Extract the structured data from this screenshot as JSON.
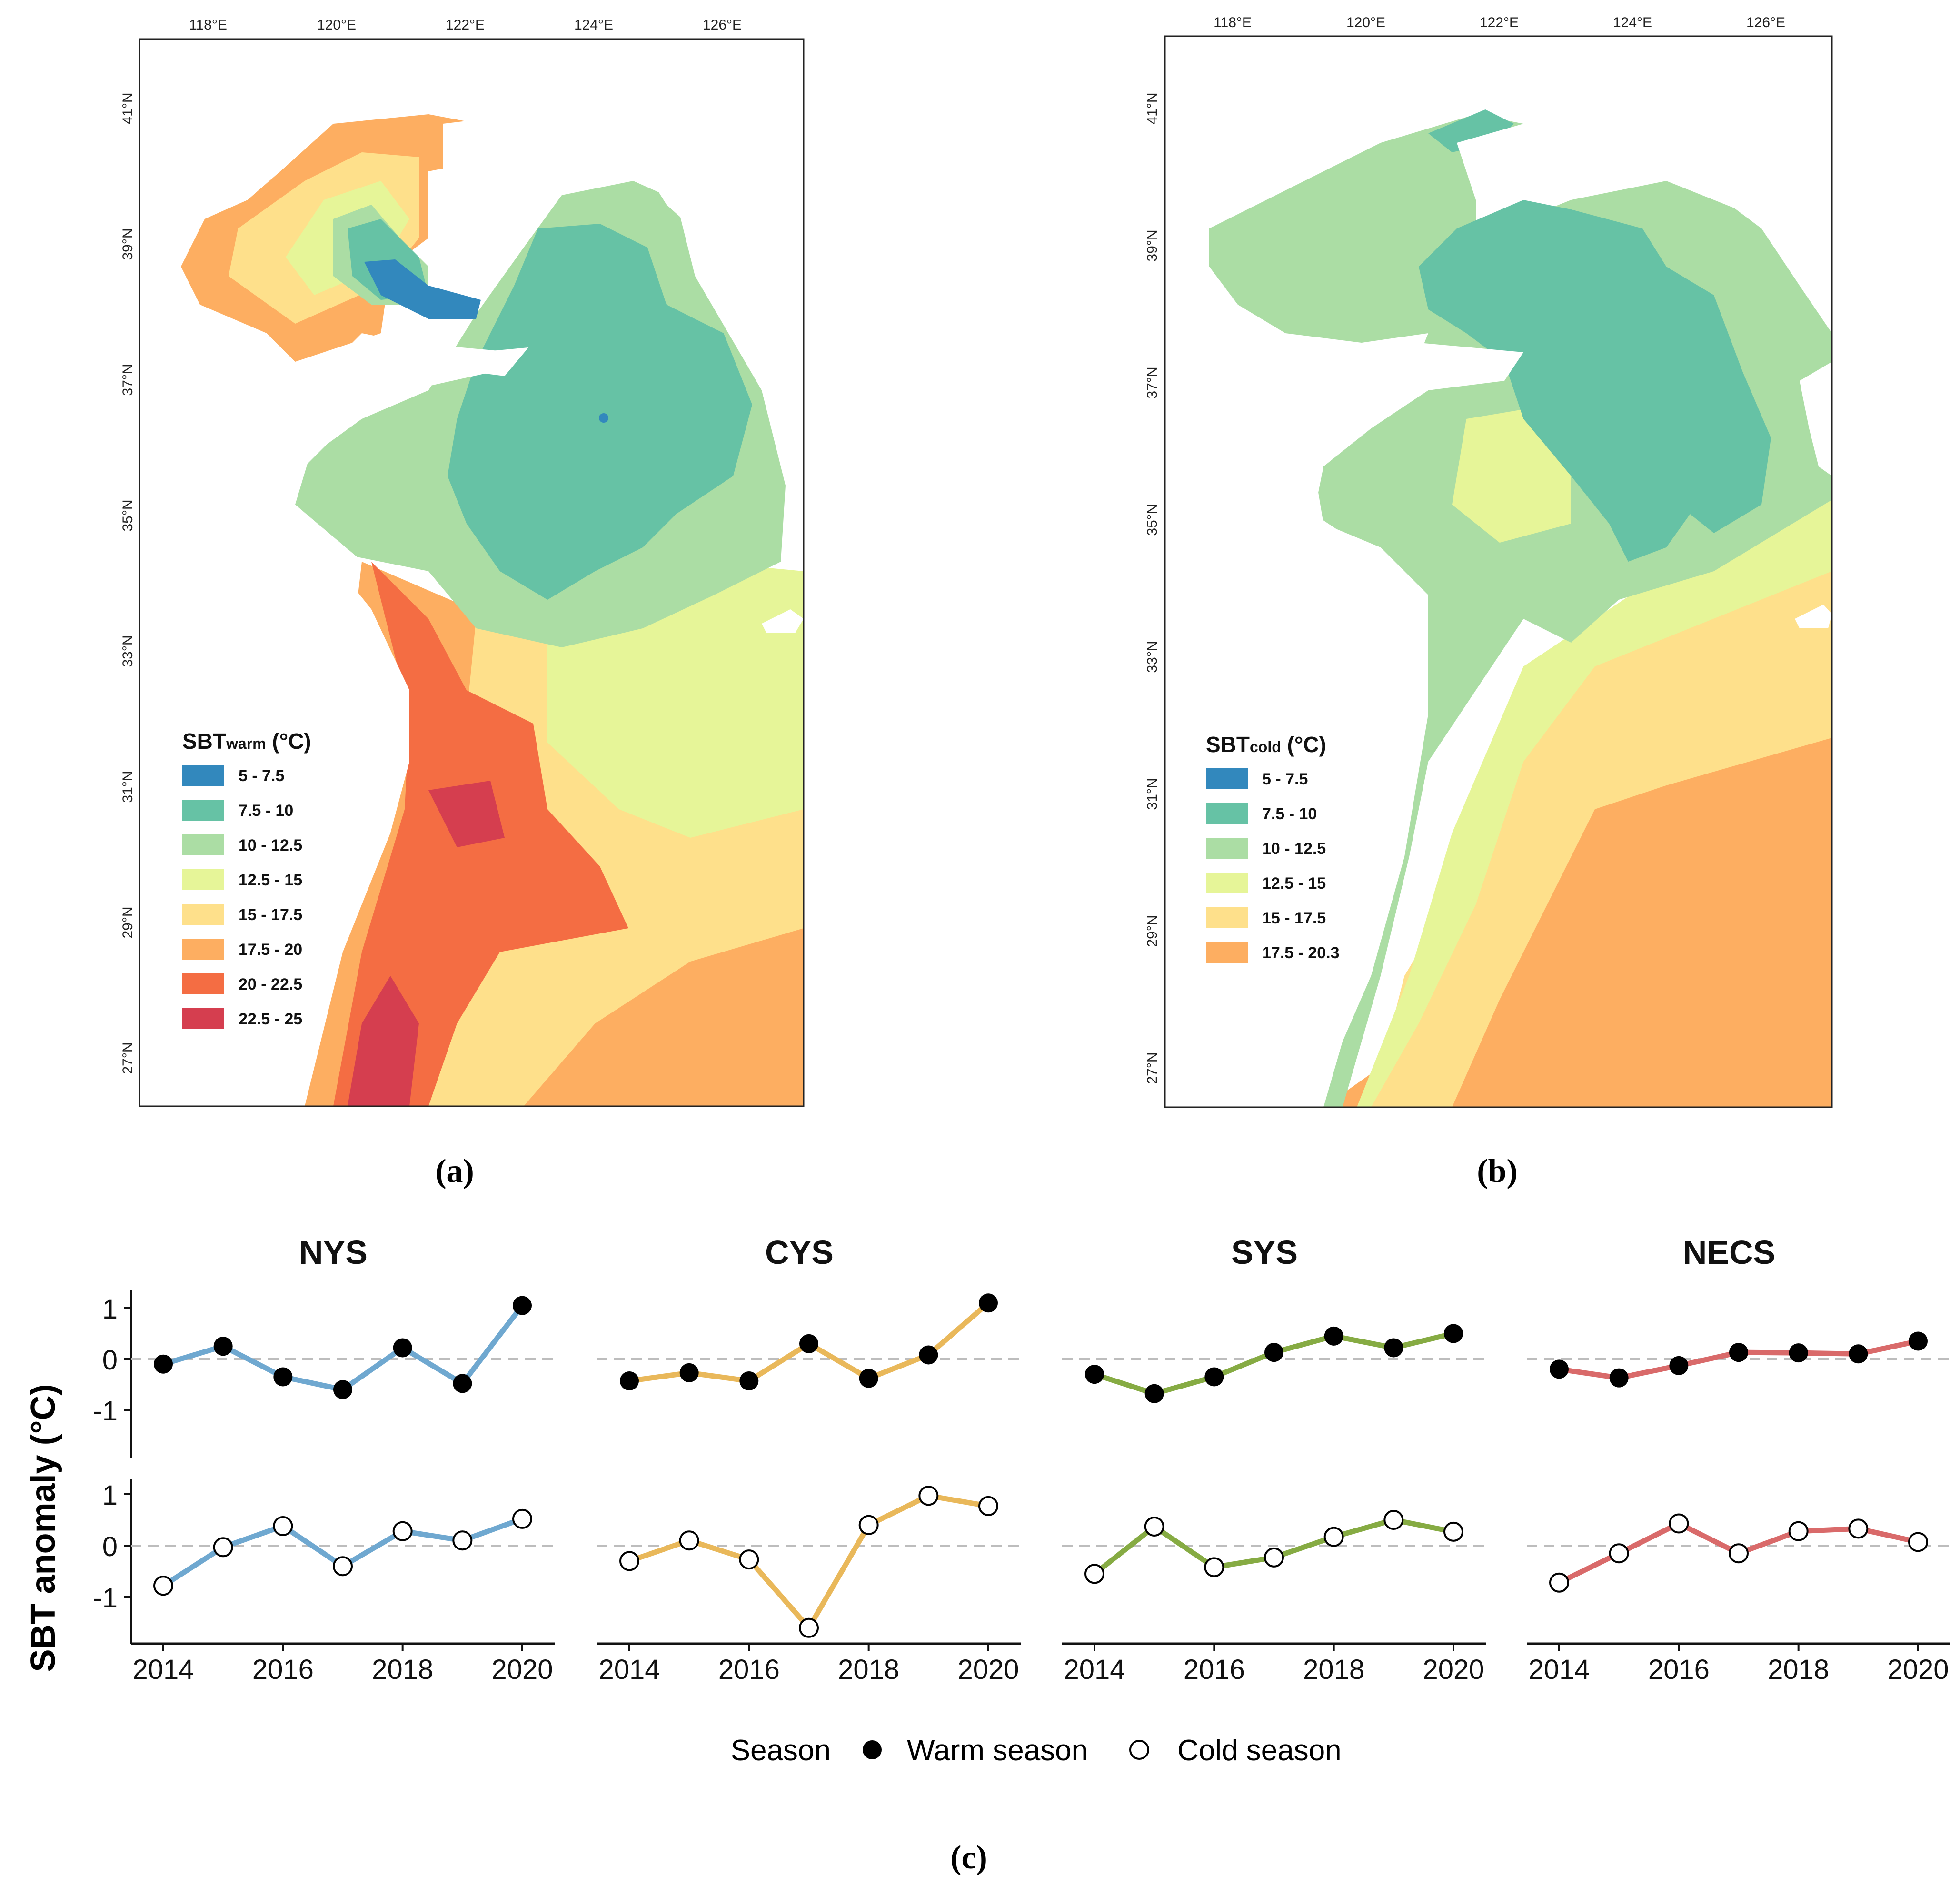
{
  "colors": {
    "c1": "#3288bd",
    "c2": "#66c2a5",
    "c3": "#abdda4",
    "c4": "#e6f598",
    "c5": "#fee08b",
    "c6": "#fdae61",
    "c7": "#f46d43",
    "c8": "#d53e4f",
    "nys": "#6fa8d0",
    "cys": "#e9b85a",
    "sys": "#86ab43",
    "necs": "#d96a6a",
    "zero": "#bdbdbd"
  },
  "map_a": {
    "lon_labels": [
      "118°E",
      "120°E",
      "122°E",
      "124°E",
      "126°E"
    ],
    "lat_labels": [
      "41°N",
      "39°N",
      "37°N",
      "35°N",
      "33°N",
      "31°N",
      "29°N",
      "27°N"
    ],
    "legend_title_main": "SBT",
    "legend_title_sub": "warm",
    "legend_title_unit": " (°C)",
    "legend_items": [
      {
        "label": "5 - 7.5",
        "color": "#3288bd"
      },
      {
        "label": "7.5 - 10",
        "color": "#66c2a5"
      },
      {
        "label": "10 - 12.5",
        "color": "#abdda4"
      },
      {
        "label": "12.5 - 15",
        "color": "#e6f598"
      },
      {
        "label": "15 - 17.5",
        "color": "#fee08b"
      },
      {
        "label": "17.5 - 20",
        "color": "#fdae61"
      },
      {
        "label": "20 - 22.5",
        "color": "#f46d43"
      },
      {
        "label": "22.5 - 25",
        "color": "#d53e4f"
      }
    ],
    "caption": "(a)"
  },
  "map_b": {
    "lon_labels": [
      "118°E",
      "120°E",
      "122°E",
      "124°E",
      "126°E"
    ],
    "lat_labels": [
      "41°N",
      "39°N",
      "37°N",
      "35°N",
      "33°N",
      "31°N",
      "29°N",
      "27°N"
    ],
    "legend_title_main": "SBT",
    "legend_title_sub": "cold",
    "legend_title_unit": " (°C)",
    "legend_items": [
      {
        "label": "5 - 7.5",
        "color": "#3288bd"
      },
      {
        "label": "7.5 - 10",
        "color": "#66c2a5"
      },
      {
        "label": "10 - 12.5",
        "color": "#abdda4"
      },
      {
        "label": "12.5 - 15",
        "color": "#e6f598"
      },
      {
        "label": "15 - 17.5",
        "color": "#fee08b"
      },
      {
        "label": "17.5 - 20.3",
        "color": "#fdae61"
      }
    ],
    "caption": "(b)"
  },
  "chart_data": {
    "type": "line",
    "ylabel": "SBT anomaly (°C)",
    "x": [
      2014,
      2015,
      2016,
      2017,
      2018,
      2019,
      2020
    ],
    "x_tick_labels": [
      "2014",
      "2016",
      "2018",
      "2020"
    ],
    "y_tick_labels": [
      "1",
      "0",
      "-1"
    ],
    "ylim_warm": [
      -1.8,
      1.2
    ],
    "ylim_cold": [
      -1.8,
      1.4
    ],
    "panels": [
      {
        "title": "NYS",
        "color": "#6fa8d0",
        "warm": [
          -0.1,
          0.25,
          -0.35,
          -0.6,
          0.22,
          -0.48,
          1.05
        ],
        "cold": [
          -0.78,
          -0.03,
          0.38,
          -0.4,
          0.28,
          0.1,
          0.52
        ]
      },
      {
        "title": "CYS",
        "color": "#e9b85a",
        "warm": [
          -0.43,
          -0.27,
          -0.43,
          0.3,
          -0.38,
          0.08,
          1.1
        ],
        "cold": [
          -0.3,
          0.1,
          -0.27,
          -1.6,
          0.4,
          0.97,
          0.77
        ]
      },
      {
        "title": "SYS",
        "color": "#86ab43",
        "warm": [
          -0.3,
          -0.68,
          -0.35,
          0.13,
          0.45,
          0.22,
          0.5
        ],
        "cold": [
          -0.55,
          0.37,
          -0.42,
          -0.23,
          0.17,
          0.5,
          0.27
        ]
      },
      {
        "title": "NECS",
        "color": "#d96a6a",
        "warm": [
          -0.2,
          -0.37,
          -0.13,
          0.13,
          0.12,
          0.1,
          0.35
        ],
        "cold": [
          -0.72,
          -0.15,
          0.43,
          -0.15,
          0.28,
          0.33,
          0.07
        ]
      }
    ],
    "legend": {
      "title": "Season",
      "warm_label": "Warm season",
      "cold_label": "Cold season"
    },
    "caption": "(c)"
  }
}
